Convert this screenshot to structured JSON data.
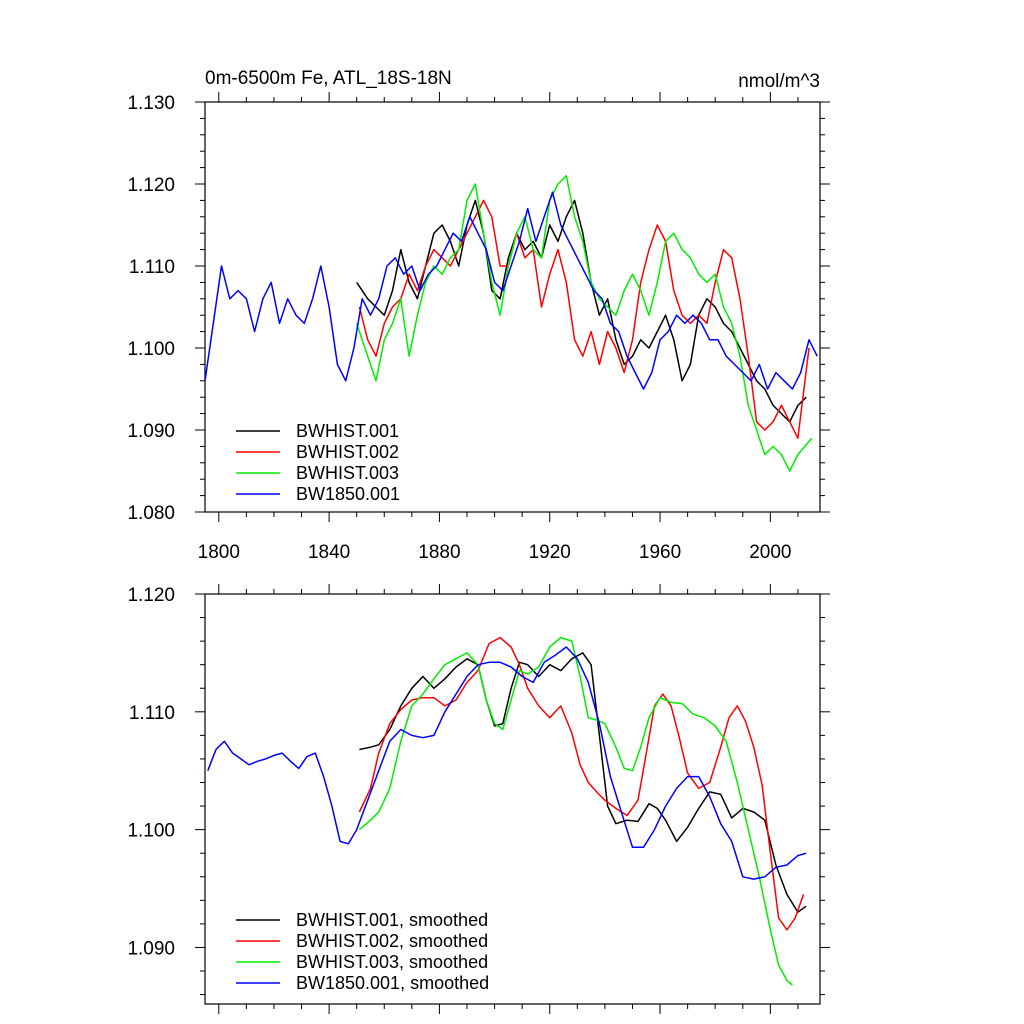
{
  "chart_data": [
    {
      "type": "line",
      "title": "0m-6500m Fe, ATL_18S-18N",
      "units": "nmol/m^3",
      "xlabel": "",
      "ylabel": "",
      "xlim": [
        1795,
        2018
      ],
      "ylim": [
        1.08,
        1.13
      ],
      "xticks": [
        1800,
        1840,
        1880,
        1920,
        1960,
        2000
      ],
      "xtick_labels": [
        "1800",
        "1840",
        "1880",
        "1920",
        "1960",
        "2000"
      ],
      "yticks": [
        1.08,
        1.09,
        1.1,
        1.11,
        1.12,
        1.13
      ],
      "ytick_labels": [
        "1.080",
        "1.090",
        "1.100",
        "1.110",
        "1.120",
        "1.130"
      ],
      "legend_position": "bottom-left",
      "series": [
        {
          "name": "BWHIST.001",
          "color": "#000000",
          "x": [
            1850,
            1854,
            1857,
            1860,
            1863,
            1866,
            1869,
            1872,
            1875,
            1878,
            1881,
            1884,
            1887,
            1890,
            1893,
            1896,
            1899,
            1902,
            1905,
            1908,
            1911,
            1914,
            1917,
            1920,
            1923,
            1926,
            1929,
            1932,
            1935,
            1938,
            1941,
            1944,
            1947,
            1950,
            1953,
            1956,
            1959,
            1962,
            1965,
            1968,
            1971,
            1974,
            1977,
            1980,
            1983,
            1986,
            1989,
            1992,
            1995,
            1998,
            2001,
            2004,
            2007,
            2010,
            2013
          ],
          "y": [
            1.108,
            1.106,
            1.105,
            1.104,
            1.107,
            1.112,
            1.108,
            1.106,
            1.11,
            1.114,
            1.115,
            1.113,
            1.11,
            1.115,
            1.118,
            1.114,
            1.107,
            1.106,
            1.111,
            1.114,
            1.112,
            1.113,
            1.111,
            1.115,
            1.113,
            1.116,
            1.118,
            1.114,
            1.108,
            1.104,
            1.106,
            1.101,
            1.098,
            1.099,
            1.101,
            1.1,
            1.102,
            1.104,
            1.101,
            1.096,
            1.098,
            1.104,
            1.106,
            1.105,
            1.103,
            1.102,
            1.1,
            1.098,
            1.096,
            1.095,
            1.093,
            1.092,
            1.091,
            1.093,
            1.094
          ]
        },
        {
          "name": "BWHIST.002",
          "color": "#ff0000",
          "x": [
            1851,
            1854,
            1857,
            1860,
            1863,
            1866,
            1869,
            1872,
            1875,
            1878,
            1881,
            1884,
            1887,
            1890,
            1893,
            1896,
            1899,
            1902,
            1905,
            1908,
            1911,
            1914,
            1917,
            1920,
            1923,
            1926,
            1929,
            1932,
            1935,
            1938,
            1941,
            1944,
            1947,
            1950,
            1953,
            1956,
            1959,
            1962,
            1965,
            1968,
            1971,
            1974,
            1977,
            1980,
            1983,
            1986,
            1989,
            1992,
            1995,
            1998,
            2001,
            2004,
            2007,
            2010,
            2014
          ],
          "y": [
            1.105,
            1.101,
            1.099,
            1.103,
            1.105,
            1.106,
            1.109,
            1.107,
            1.11,
            1.112,
            1.111,
            1.11,
            1.112,
            1.114,
            1.116,
            1.118,
            1.116,
            1.11,
            1.11,
            1.114,
            1.111,
            1.112,
            1.105,
            1.109,
            1.112,
            1.108,
            1.101,
            1.099,
            1.102,
            1.098,
            1.102,
            1.1,
            1.097,
            1.101,
            1.108,
            1.112,
            1.115,
            1.113,
            1.107,
            1.104,
            1.103,
            1.104,
            1.103,
            1.108,
            1.112,
            1.111,
            1.106,
            1.099,
            1.091,
            1.09,
            1.091,
            1.093,
            1.091,
            1.089,
            1.1
          ]
        },
        {
          "name": "BWHIST.003",
          "color": "#00ee00",
          "x": [
            1850,
            1854,
            1857,
            1860,
            1863,
            1866,
            1869,
            1872,
            1875,
            1878,
            1881,
            1884,
            1887,
            1890,
            1893,
            1896,
            1899,
            1902,
            1905,
            1908,
            1911,
            1914,
            1917,
            1920,
            1923,
            1926,
            1929,
            1932,
            1935,
            1938,
            1941,
            1944,
            1947,
            1950,
            1953,
            1956,
            1959,
            1962,
            1965,
            1968,
            1971,
            1974,
            1977,
            1980,
            1983,
            1986,
            1989,
            1992,
            1995,
            1998,
            2001,
            2004,
            2007,
            2010,
            2015
          ],
          "y": [
            1.103,
            1.099,
            1.096,
            1.101,
            1.103,
            1.106,
            1.099,
            1.104,
            1.108,
            1.11,
            1.109,
            1.111,
            1.112,
            1.118,
            1.12,
            1.114,
            1.108,
            1.104,
            1.11,
            1.114,
            1.116,
            1.112,
            1.111,
            1.118,
            1.12,
            1.121,
            1.116,
            1.113,
            1.108,
            1.106,
            1.105,
            1.104,
            1.107,
            1.109,
            1.107,
            1.104,
            1.108,
            1.113,
            1.114,
            1.112,
            1.111,
            1.109,
            1.108,
            1.109,
            1.105,
            1.103,
            1.099,
            1.093,
            1.09,
            1.087,
            1.088,
            1.087,
            1.085,
            1.087,
            1.089
          ]
        },
        {
          "name": "BW1850.001",
          "color": "#0000ff",
          "x": [
            1795,
            1798,
            1801,
            1804,
            1807,
            1810,
            1813,
            1816,
            1819,
            1822,
            1825,
            1828,
            1831,
            1834,
            1837,
            1840,
            1843,
            1846,
            1849,
            1852,
            1855,
            1858,
            1861,
            1864,
            1867,
            1870,
            1873,
            1876,
            1879,
            1882,
            1885,
            1888,
            1891,
            1894,
            1897,
            1900,
            1903,
            1906,
            1909,
            1912,
            1915,
            1918,
            1921,
            1924,
            1927,
            1930,
            1933,
            1936,
            1939,
            1942,
            1945,
            1948,
            1951,
            1954,
            1957,
            1960,
            1963,
            1966,
            1969,
            1972,
            1975,
            1978,
            1981,
            1984,
            1987,
            1990,
            1993,
            1996,
            1999,
            2002,
            2005,
            2008,
            2011,
            2014,
            2017
          ],
          "y": [
            1.096,
            1.103,
            1.11,
            1.106,
            1.107,
            1.106,
            1.102,
            1.106,
            1.108,
            1.103,
            1.106,
            1.104,
            1.103,
            1.106,
            1.11,
            1.105,
            1.098,
            1.096,
            1.1,
            1.106,
            1.104,
            1.106,
            1.11,
            1.111,
            1.109,
            1.11,
            1.107,
            1.109,
            1.11,
            1.112,
            1.114,
            1.113,
            1.116,
            1.114,
            1.112,
            1.108,
            1.107,
            1.11,
            1.113,
            1.117,
            1.113,
            1.116,
            1.119,
            1.115,
            1.113,
            1.111,
            1.109,
            1.107,
            1.106,
            1.103,
            1.102,
            1.099,
            1.097,
            1.095,
            1.097,
            1.101,
            1.102,
            1.104,
            1.103,
            1.104,
            1.103,
            1.101,
            1.101,
            1.099,
            1.098,
            1.097,
            1.096,
            1.098,
            1.095,
            1.097,
            1.096,
            1.095,
            1.097,
            1.101,
            1.099
          ]
        }
      ]
    },
    {
      "type": "line",
      "title": "",
      "xlabel": "",
      "ylabel": "",
      "xlim": [
        1795,
        2018
      ],
      "ylim": [
        1.0852,
        1.12
      ],
      "xticks": [
        1800,
        1840,
        1880,
        1920,
        1960,
        2000
      ],
      "xtick_labels": [],
      "yticks": [
        1.09,
        1.1,
        1.11,
        1.12
      ],
      "ytick_labels": [
        "1.090",
        "1.100",
        "1.110",
        "1.120"
      ],
      "legend_position": "bottom-left",
      "series": [
        {
          "name": "BWHIST.001, smoothed",
          "color": "#000000",
          "x": [
            1851,
            1855,
            1858,
            1862,
            1866,
            1870,
            1874,
            1878,
            1882,
            1886,
            1890,
            1894,
            1897,
            1900,
            1903,
            1906,
            1909,
            1912,
            1916,
            1920,
            1924,
            1928,
            1932,
            1935,
            1938,
            1941,
            1944,
            1948,
            1952,
            1956,
            1959,
            1962,
            1966,
            1970,
            1974,
            1978,
            1982,
            1986,
            1990,
            1994,
            1998,
            2002,
            2006,
            2010,
            2013
          ],
          "y": [
            1.1068,
            1.107,
            1.1072,
            1.1085,
            1.1105,
            1.112,
            1.113,
            1.112,
            1.1128,
            1.1138,
            1.1145,
            1.114,
            1.111,
            1.1088,
            1.109,
            1.112,
            1.1142,
            1.114,
            1.113,
            1.114,
            1.1135,
            1.1145,
            1.115,
            1.114,
            1.108,
            1.102,
            1.1005,
            1.1008,
            1.1007,
            1.1022,
            1.1018,
            1.1008,
            1.099,
            1.1002,
            1.1018,
            1.1032,
            1.103,
            1.101,
            1.1018,
            1.1015,
            1.1008,
            1.097,
            1.0945,
            1.093,
            1.0935
          ]
        },
        {
          "name": "BWHIST.002, smoothed",
          "color": "#ff0000",
          "x": [
            1851,
            1855,
            1858,
            1862,
            1866,
            1870,
            1874,
            1878,
            1882,
            1886,
            1890,
            1894,
            1898,
            1902,
            1906,
            1909,
            1912,
            1916,
            1920,
            1924,
            1928,
            1931,
            1934,
            1937,
            1940,
            1944,
            1948,
            1952,
            1955,
            1958,
            1961,
            1964,
            1967,
            1970,
            1974,
            1978,
            1982,
            1985,
            1988,
            1991,
            1994,
            1997,
            2000,
            2003,
            2006,
            2009,
            2012
          ],
          "y": [
            1.1015,
            1.1035,
            1.1065,
            1.109,
            1.1102,
            1.111,
            1.1112,
            1.1112,
            1.1105,
            1.111,
            1.1125,
            1.1135,
            1.1158,
            1.1163,
            1.1155,
            1.114,
            1.112,
            1.1105,
            1.1095,
            1.1105,
            1.1082,
            1.1055,
            1.104,
            1.1032,
            1.1025,
            1.1018,
            1.1012,
            1.1025,
            1.1065,
            1.1105,
            1.1115,
            1.1105,
            1.1078,
            1.1048,
            1.1035,
            1.104,
            1.107,
            1.1095,
            1.1105,
            1.1092,
            1.107,
            1.1038,
            1.098,
            1.0925,
            1.0915,
            1.0925,
            1.0945
          ]
        },
        {
          "name": "BWHIST.003, smoothed",
          "color": "#00ee00",
          "x": [
            1851,
            1855,
            1858,
            1862,
            1866,
            1870,
            1874,
            1878,
            1882,
            1886,
            1890,
            1894,
            1897,
            1900,
            1903,
            1906,
            1909,
            1912,
            1916,
            1920,
            1924,
            1928,
            1931,
            1934,
            1937,
            1940,
            1944,
            1947,
            1950,
            1953,
            1956,
            1960,
            1964,
            1968,
            1972,
            1976,
            1980,
            1984,
            1988,
            1992,
            1996,
            2000,
            2003,
            2006,
            2008
          ],
          "y": [
            1.1,
            1.1008,
            1.1015,
            1.1035,
            1.1075,
            1.1105,
            1.1115,
            1.1128,
            1.114,
            1.1145,
            1.115,
            1.114,
            1.111,
            1.109,
            1.1085,
            1.111,
            1.1135,
            1.1132,
            1.1138,
            1.1155,
            1.1163,
            1.116,
            1.113,
            1.1095,
            1.1093,
            1.109,
            1.107,
            1.1052,
            1.105,
            1.107,
            1.1095,
            1.1112,
            1.1108,
            1.1107,
            1.1098,
            1.1095,
            1.1088,
            1.1075,
            1.104,
            1.1,
            1.096,
            1.0915,
            1.0885,
            1.0872,
            1.0868
          ]
        },
        {
          "name": "BW1850.001, smoothed",
          "color": "#0000ff",
          "x": [
            1796,
            1799,
            1802,
            1805,
            1808,
            1811,
            1814,
            1817,
            1820,
            1823,
            1826,
            1829,
            1832,
            1835,
            1838,
            1841,
            1844,
            1847,
            1850,
            1854,
            1858,
            1862,
            1866,
            1870,
            1874,
            1878,
            1882,
            1886,
            1890,
            1894,
            1898,
            1902,
            1906,
            1910,
            1914,
            1918,
            1922,
            1926,
            1930,
            1934,
            1938,
            1942,
            1946,
            1950,
            1954,
            1958,
            1962,
            1966,
            1970,
            1974,
            1978,
            1982,
            1986,
            1990,
            1994,
            1998,
            2002,
            2006,
            2010,
            2013
          ],
          "y": [
            1.105,
            1.1068,
            1.1075,
            1.1065,
            1.106,
            1.1055,
            1.1058,
            1.106,
            1.1063,
            1.1065,
            1.1058,
            1.1052,
            1.1062,
            1.1065,
            1.1045,
            1.102,
            1.099,
            1.0988,
            1.1,
            1.1025,
            1.105,
            1.1075,
            1.1085,
            1.108,
            1.1078,
            1.108,
            1.11,
            1.1115,
            1.113,
            1.114,
            1.1142,
            1.1142,
            1.1138,
            1.113,
            1.1125,
            1.1142,
            1.1148,
            1.1155,
            1.1145,
            1.1125,
            1.109,
            1.1045,
            1.1015,
            1.0985,
            1.0985,
            1.1,
            1.102,
            1.1035,
            1.1045,
            1.1045,
            1.1028,
            1.1005,
            1.099,
            1.096,
            1.0958,
            1.096,
            1.0968,
            1.097,
            1.0978,
            1.098
          ]
        }
      ]
    }
  ]
}
